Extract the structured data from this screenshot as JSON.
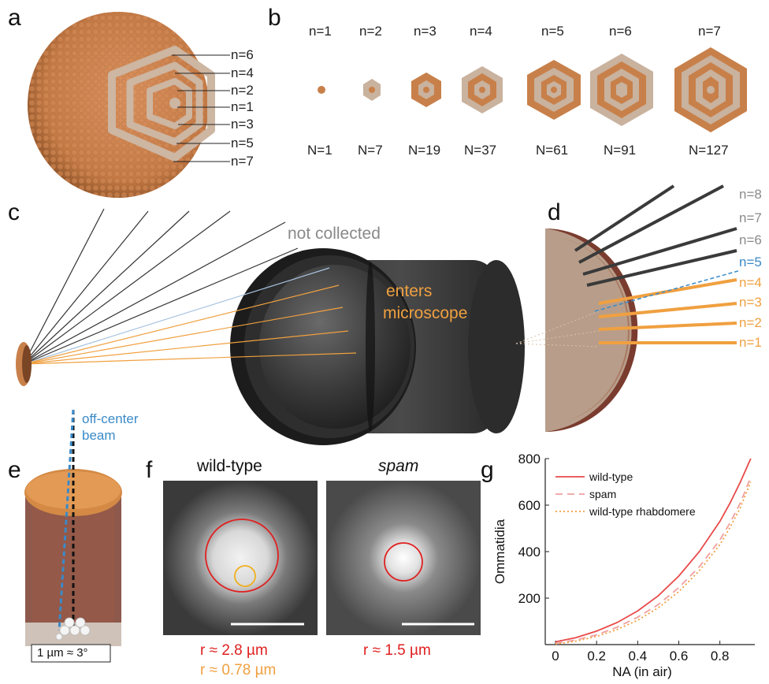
{
  "panels": {
    "a": {
      "letter": "a",
      "labels": [
        "n=6",
        "n=4",
        "n=2",
        "n=1",
        "n=3",
        "n=5",
        "n=7"
      ]
    },
    "b": {
      "letter": "b",
      "top": [
        "n=1",
        "n=2",
        "n=3",
        "n=4",
        "n=5",
        "n=6",
        "n=7"
      ],
      "bottom": [
        "N=1",
        "N=7",
        "N=19",
        "N=37",
        "N=61",
        "N=91",
        "N=127"
      ]
    },
    "c": {
      "letter": "c",
      "not_collected": "not collected",
      "enters": "enters",
      "microscope": "microscope"
    },
    "d": {
      "letter": "d",
      "labels": [
        "n=8",
        "n=7",
        "n=6",
        "n=5",
        "n=4",
        "n=3",
        "n=2",
        "n=1"
      ]
    },
    "e": {
      "letter": "e",
      "beam_line1": "off-center",
      "beam_line2": "beam",
      "scale": "1 µm ≈ 3°"
    },
    "f": {
      "letter": "f",
      "left_title": "wild-type",
      "right_title": "spam",
      "left_r_red": "r ≈ 2.8 µm",
      "left_r_orange": "r ≈ 0.78 µm",
      "right_r_red": "r ≈ 1.5 µm"
    },
    "g": {
      "letter": "g"
    }
  },
  "colors": {
    "copper": "#c8804a",
    "light_facet": "#c9b29e",
    "orange": "#f0a040",
    "blue": "#3a8ac8",
    "red": "#e02020",
    "grey_text": "#8a8a8a"
  },
  "chart_data": {
    "type": "line",
    "title": "",
    "xlabel": "NA (in air)",
    "ylabel": "Ommatidia",
    "xlim": [
      -0.05,
      0.97
    ],
    "ylim": [
      0,
      800
    ],
    "xticks": [
      "0",
      "0.2",
      "0.4",
      "0.6",
      "0.8"
    ],
    "yticks": [
      "200",
      "400",
      "600",
      "800"
    ],
    "legend_position": "top-left",
    "series": [
      {
        "name": "wild-type",
        "style": "solid",
        "color": "#e84a4a",
        "x": [
          0,
          0.1,
          0.2,
          0.3,
          0.4,
          0.5,
          0.6,
          0.7,
          0.8,
          0.85,
          0.9,
          0.95
        ],
        "y": [
          12,
          30,
          58,
          95,
          145,
          210,
          295,
          400,
          530,
          610,
          700,
          800
        ]
      },
      {
        "name": "spam",
        "style": "dashed",
        "color": "#f0a0a0",
        "x": [
          0,
          0.1,
          0.2,
          0.3,
          0.4,
          0.5,
          0.6,
          0.7,
          0.8,
          0.85,
          0.9,
          0.95
        ],
        "y": [
          5,
          20,
          42,
          75,
          118,
          172,
          245,
          335,
          450,
          525,
          610,
          720
        ]
      },
      {
        "name": "wild-type rhabdomere",
        "style": "dotted",
        "color": "#f0a040",
        "x": [
          0,
          0.1,
          0.2,
          0.3,
          0.4,
          0.5,
          0.6,
          0.7,
          0.8,
          0.85,
          0.9,
          0.95
        ],
        "y": [
          2,
          15,
          35,
          65,
          105,
          158,
          228,
          318,
          430,
          505,
          590,
          700
        ]
      }
    ]
  }
}
